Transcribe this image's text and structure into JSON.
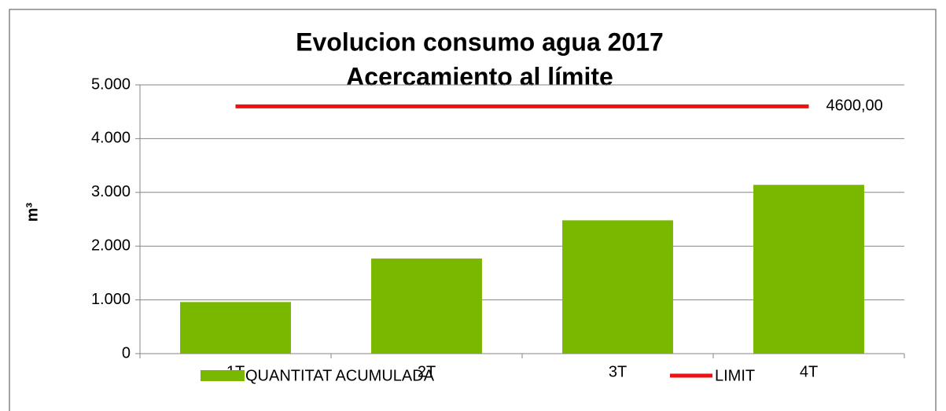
{
  "chart_data": {
    "type": "bar",
    "title": "Evolucion consumo agua 2017",
    "subtitle": "Acercamiento al límite",
    "y_label": "m³",
    "categories": [
      "1T",
      "2T",
      "3T",
      "4T"
    ],
    "series": [
      {
        "name": "QUANTITAT ACUMULADA",
        "type": "bar",
        "color": "#7ab800",
        "values": [
          960,
          1770,
          2480,
          3140
        ]
      },
      {
        "name": "LIMIT",
        "type": "line",
        "color": "#ee1111",
        "values": [
          4600,
          4600,
          4600,
          4600
        ],
        "value_labels": [
          null,
          null,
          null,
          "4600,00"
        ]
      }
    ],
    "ylim": [
      0,
      5000
    ],
    "yticks": [
      0,
      {
        "value": 1000,
        "label": "1.000"
      },
      {
        "value": 2000,
        "label": "2.000"
      },
      {
        "value": 3000,
        "label": "3.000"
      },
      {
        "value": 4000,
        "label": "4.000"
      },
      {
        "value": 5000,
        "label": "5.000"
      }
    ],
    "grid": true,
    "legend": "bottom"
  }
}
